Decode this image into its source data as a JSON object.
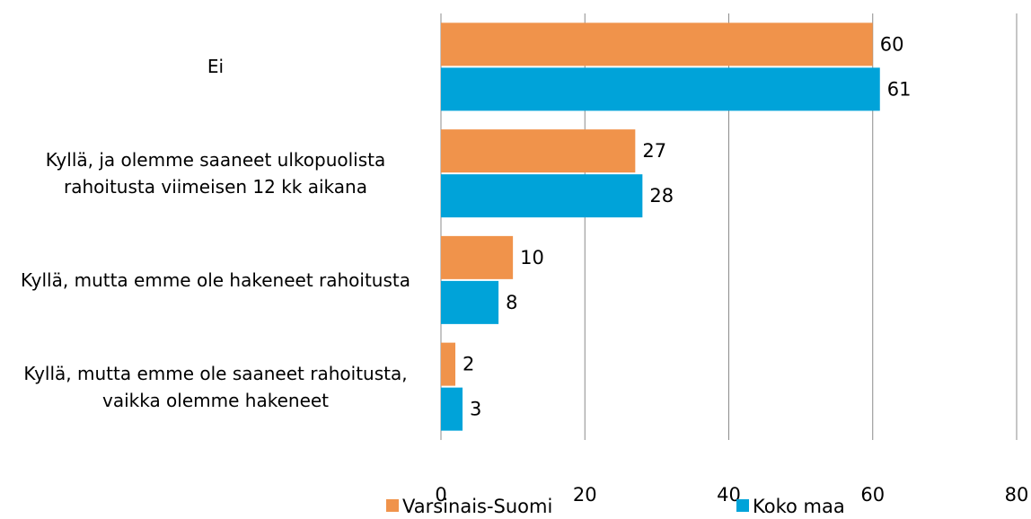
{
  "chart_data": {
    "type": "barh",
    "categories": [
      "Ei",
      "Kyllä, ja olemme saaneet ulkopuolista rahoitusta viimeisen 12 kk aikana",
      "Kyllä, mutta emme ole hakeneet rahoitusta",
      "Kyllä, mutta emme ole saaneet rahoitusta, vaikka olemme hakeneet"
    ],
    "series": [
      {
        "name": "Varsinais-Suomi",
        "color": "#f0934b",
        "values": [
          60,
          27,
          10,
          2
        ]
      },
      {
        "name": "Koko maa",
        "color": "#00a3d9",
        "values": [
          61,
          28,
          8,
          3
        ]
      }
    ],
    "xlim": [
      0,
      80
    ],
    "xticks": [
      0,
      20,
      40,
      60,
      80
    ],
    "grid": true,
    "legend": "bottom"
  }
}
